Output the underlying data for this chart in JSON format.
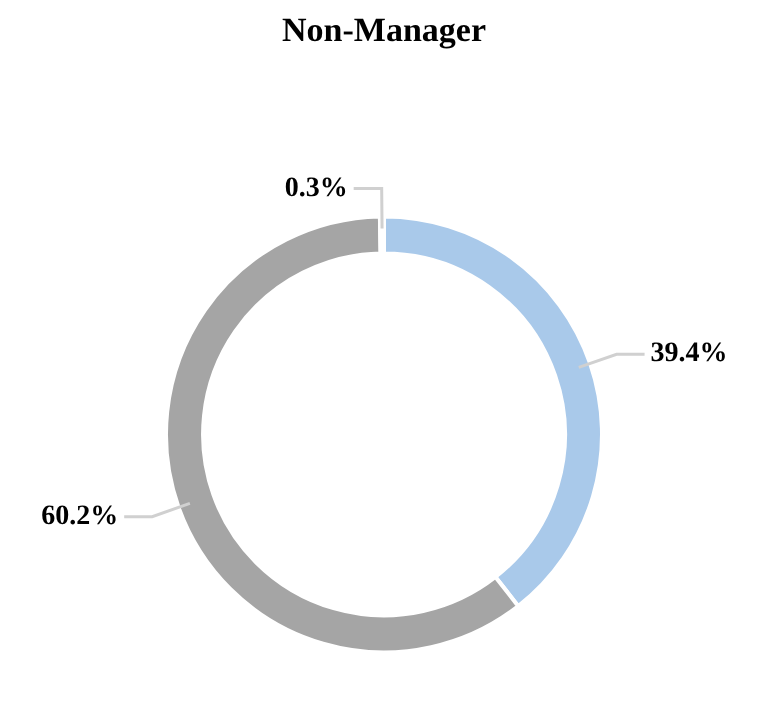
{
  "chart_data": {
    "type": "donut",
    "title": "Non-Manager",
    "categories": [
      null,
      null,
      null
    ],
    "values": [
      39.4,
      60.2,
      0.3
    ],
    "colors": [
      "#a9c9ea",
      "#a5a5a5",
      "#7f7f7f"
    ],
    "value_labels": [
      "39.4%",
      "60.2%",
      "0.3%"
    ],
    "legend": false
  }
}
